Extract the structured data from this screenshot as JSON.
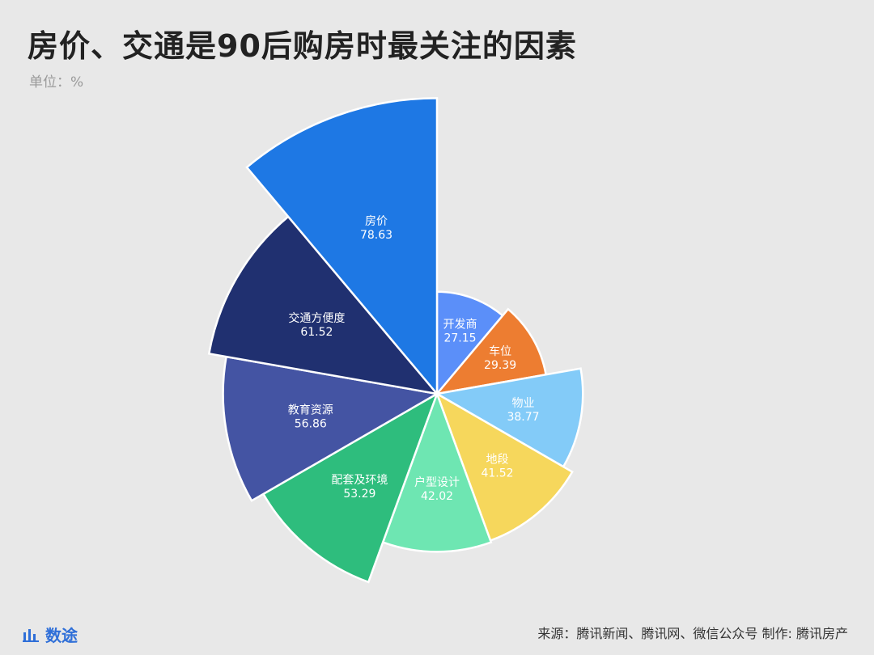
{
  "header": {
    "title": "房价、交通是90后购房时最关注的因素",
    "unit": "单位：%"
  },
  "footer": {
    "logo_icon": "bar-chart-icon",
    "logo_text": "数途",
    "source": "来源：腾讯新闻、腾讯网、微信公众号  制作: 腾讯房产"
  },
  "chart_data": {
    "type": "pie",
    "subtype": "rose",
    "rmax_value": 80,
    "categories": [
      "开发商",
      "车位",
      "物业",
      "地段",
      "户型设计",
      "配套及环境",
      "教育资源",
      "交通方便度",
      "房价"
    ],
    "values": [
      27.15,
      29.39,
      38.77,
      41.52,
      42.02,
      53.29,
      56.86,
      61.52,
      78.63
    ],
    "colors": [
      "#5b8ff9",
      "#ed7d31",
      "#83cbf8",
      "#f6d75c",
      "#6ee6b2",
      "#2ebd7d",
      "#4454a3",
      "#203070",
      "#1e78e4"
    ]
  }
}
